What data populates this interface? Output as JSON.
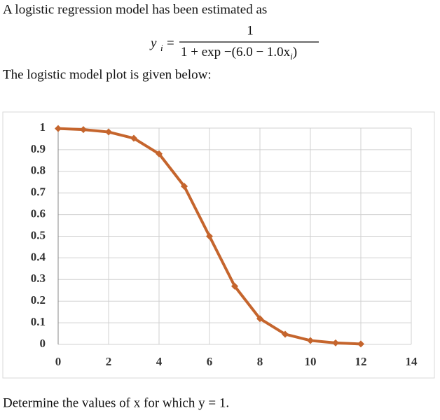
{
  "intro": "A logistic regression model has been estimated as",
  "equation": {
    "lhs": "y",
    "lhs_sub": "i",
    "equals": "=",
    "numerator": "1",
    "denominator": "1 + exp −(6.0 − 1.0x",
    "denominator_sub": "i",
    "denominator_end": ")"
  },
  "caption": "The logistic model plot is given below:",
  "question": "Determine the values of x for which y = 1.",
  "chart_data": {
    "type": "line",
    "x": [
      0,
      1,
      2,
      3,
      4,
      5,
      6,
      7,
      8,
      9,
      10,
      11,
      12
    ],
    "series": [
      {
        "color": "#c5652d",
        "values": [
          0.998,
          0.993,
          0.982,
          0.953,
          0.881,
          0.731,
          0.5,
          0.269,
          0.119,
          0.047,
          0.018,
          0.007,
          0.002
        ]
      }
    ],
    "xlim": [
      0,
      14
    ],
    "xticks": [
      0,
      2,
      4,
      6,
      8,
      10,
      12,
      14
    ],
    "ylim": [
      0,
      1
    ],
    "yticks": [
      0,
      0.1,
      0.2,
      0.3,
      0.4,
      0.5,
      0.6,
      0.7,
      0.8,
      0.9,
      1
    ],
    "grid": true
  }
}
